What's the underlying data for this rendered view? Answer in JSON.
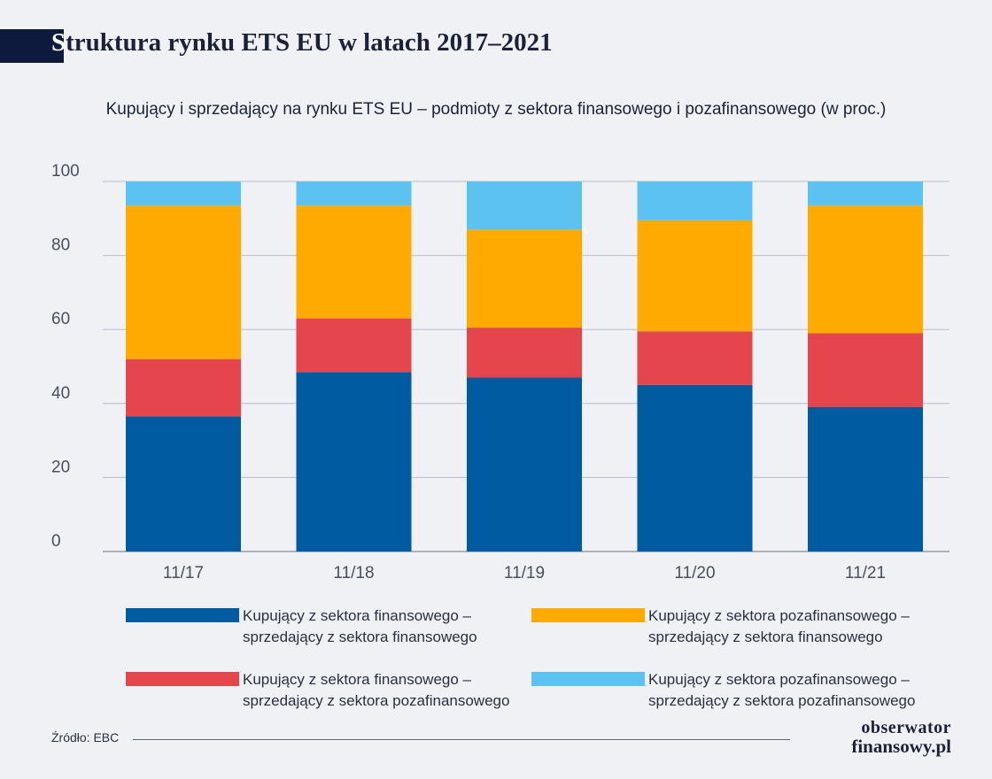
{
  "header": {
    "title": "Struktura rynku ETS EU w latach 2017–2021",
    "subtitle": "Kupujący i sprzedający na rynku ETS EU – podmioty z sektora finansowego i pozafinansowego (w proc.)"
  },
  "footer": {
    "source": "Źródło: EBC",
    "logo_line1": "obserwator",
    "logo_line2": "finansowy.pl"
  },
  "chart_data": {
    "type": "bar",
    "stacked": true,
    "categories": [
      "11/17",
      "11/18",
      "11/19",
      "11/20",
      "11/21"
    ],
    "ylim": [
      0,
      100
    ],
    "yticks": [
      0,
      20,
      40,
      60,
      80,
      100
    ],
    "grid": true,
    "legend_position": "bottom",
    "series": [
      {
        "name": "Kupujący z sektora finansowego –\nsprzedający z sektora finansowego",
        "color": "#005ba1",
        "values": [
          36.5,
          48.5,
          47,
          45,
          39
        ]
      },
      {
        "name": "Kupujący z sektora finansowego –\nsprzedający z sektora pozafinansowego",
        "color": "#e5454c",
        "values": [
          15.5,
          14.5,
          13.5,
          14.5,
          20
        ]
      },
      {
        "name": "Kupujący z sektora pozafinansowego –\nsprzedający z sektora finansowego",
        "color": "#ffaa00",
        "values": [
          41.5,
          30.5,
          26.5,
          30,
          34.5
        ]
      },
      {
        "name": "Kupujący z sektora pozafinansowego –\nsprzedający z sektora pozafinansowego",
        "color": "#5bc2f2",
        "values": [
          6.5,
          6.5,
          13,
          10.5,
          6.5
        ]
      }
    ]
  }
}
